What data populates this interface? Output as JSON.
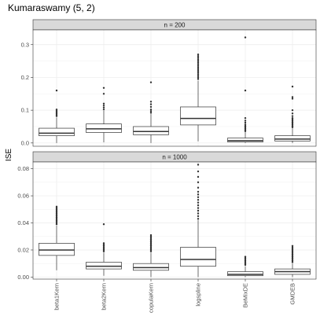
{
  "chart_data": {
    "type": "boxplot",
    "title": "Kumaraswamy (5, 2)",
    "ylabel": "ISE",
    "xlabel": "",
    "categories": [
      "beta1Kern",
      "beta2Kern",
      "copulaKern",
      "logspline",
      "BeMixDE",
      "GMDEB"
    ],
    "legend": "none",
    "grid": true,
    "panels": [
      {
        "strip": "n = 200",
        "ylim": [
          -0.01,
          0.345
        ],
        "yticks": [
          0.0,
          0.1,
          0.2,
          0.3
        ],
        "yticklabels": [
          "0.0",
          "0.1",
          "0.2",
          "0.3"
        ],
        "boxes": [
          {
            "category": "beta1Kern",
            "whisker_low": 0.0,
            "q1": 0.022,
            "median": 0.03,
            "q3": 0.045,
            "whisker_high": 0.078,
            "outliers": [
              0.082,
              0.086,
              0.09,
              0.094,
              0.098,
              0.102,
              0.16
            ]
          },
          {
            "category": "beta2Kern",
            "whisker_low": 0.002,
            "q1": 0.032,
            "median": 0.043,
            "q3": 0.058,
            "whisker_high": 0.098,
            "outliers": [
              0.102,
              0.108,
              0.114,
              0.12,
              0.15,
              0.168
            ]
          },
          {
            "category": "copulaKern",
            "whisker_low": 0.0,
            "q1": 0.025,
            "median": 0.035,
            "q3": 0.05,
            "whisker_high": 0.088,
            "outliers": [
              0.092,
              0.097,
              0.102,
              0.11,
              0.118,
              0.126,
              0.185
            ]
          },
          {
            "category": "logspline",
            "whisker_low": 0.005,
            "q1": 0.055,
            "median": 0.075,
            "q3": 0.11,
            "whisker_high": 0.19,
            "outliers": [
              0.195,
              0.2,
              0.205,
              0.21,
              0.215,
              0.22,
              0.225,
              0.23,
              0.235,
              0.24,
              0.245,
              0.25,
              0.255,
              0.26,
              0.265,
              0.27
            ]
          },
          {
            "category": "BeMixDE",
            "whisker_low": 0.0,
            "q1": 0.003,
            "median": 0.007,
            "q3": 0.015,
            "whisker_high": 0.033,
            "outliers": [
              0.036,
              0.04,
              0.044,
              0.048,
              0.052,
              0.056,
              0.062,
              0.068,
              0.076,
              0.16,
              0.322
            ]
          },
          {
            "category": "GMDEB",
            "whisker_low": 0.0,
            "q1": 0.006,
            "median": 0.012,
            "q3": 0.022,
            "whisker_high": 0.045,
            "outliers": [
              0.048,
              0.052,
              0.056,
              0.06,
              0.064,
              0.068,
              0.072,
              0.076,
              0.082,
              0.09,
              0.1,
              0.135,
              0.14,
              0.172
            ]
          }
        ]
      },
      {
        "strip": "n = 1000",
        "ylim": [
          -0.0015,
          0.085
        ],
        "yticks": [
          0.0,
          0.02,
          0.04,
          0.06,
          0.08
        ],
        "yticklabels": [
          "0.00",
          "0.02",
          "0.04",
          "0.06",
          "0.08"
        ],
        "boxes": [
          {
            "category": "beta1Kern",
            "whisker_low": 0.005,
            "q1": 0.016,
            "median": 0.02,
            "q3": 0.025,
            "whisker_high": 0.038,
            "outliers": [
              0.039,
              0.04,
              0.041,
              0.042,
              0.043,
              0.044,
              0.045,
              0.046,
              0.047,
              0.048,
              0.049,
              0.05,
              0.051,
              0.052
            ]
          },
          {
            "category": "beta2Kern",
            "whisker_low": 0.001,
            "q1": 0.006,
            "median": 0.008,
            "q3": 0.011,
            "whisker_high": 0.018,
            "outliers": [
              0.019,
              0.02,
              0.021,
              0.022,
              0.023,
              0.024,
              0.025,
              0.039
            ]
          },
          {
            "category": "copulaKern",
            "whisker_low": 0.0,
            "q1": 0.005,
            "median": 0.007,
            "q3": 0.01,
            "whisker_high": 0.018,
            "outliers": [
              0.019,
              0.02,
              0.021,
              0.022,
              0.023,
              0.024,
              0.025,
              0.026,
              0.027,
              0.028,
              0.029,
              0.03,
              0.031
            ]
          },
          {
            "category": "logspline",
            "whisker_low": 0.0,
            "q1": 0.008,
            "median": 0.013,
            "q3": 0.022,
            "whisker_high": 0.042,
            "outliers": [
              0.043,
              0.045,
              0.047,
              0.049,
              0.051,
              0.053,
              0.055,
              0.057,
              0.059,
              0.061,
              0.063,
              0.066,
              0.07,
              0.074,
              0.078,
              0.083
            ]
          },
          {
            "category": "BeMixDE",
            "whisker_low": 0.0,
            "q1": 0.001,
            "median": 0.002,
            "q3": 0.004,
            "whisker_high": 0.008,
            "outliers": [
              0.009,
              0.01,
              0.011,
              0.012,
              0.013,
              0.014,
              0.015
            ]
          },
          {
            "category": "GMDEB",
            "whisker_low": 0.0,
            "q1": 0.002,
            "median": 0.004,
            "q3": 0.006,
            "whisker_high": 0.01,
            "outliers": [
              0.011,
              0.012,
              0.013,
              0.014,
              0.015,
              0.016,
              0.017,
              0.018,
              0.019,
              0.02,
              0.021,
              0.022,
              0.023
            ]
          }
        ]
      }
    ]
  }
}
